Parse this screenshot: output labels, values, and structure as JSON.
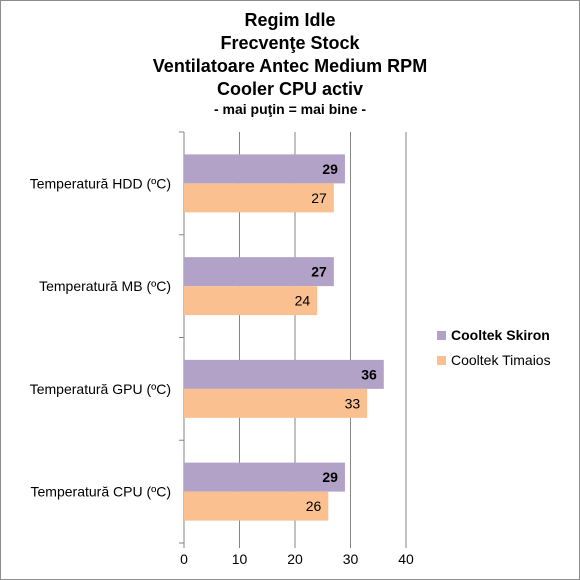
{
  "title_lines": [
    "Regim Idle",
    "Frecvenţe Stock",
    "Ventilatoare Antec Medium RPM",
    "Cooler CPU activ",
    "- mai puţin = mai bine -"
  ],
  "chart_data": {
    "type": "bar",
    "orientation": "horizontal",
    "categories": [
      "Temperatură  HDD (ºC)",
      "Temperatură  MB (ºC)",
      "Temperatură  GPU (ºC)",
      "Temperatură  CPU (ºC)"
    ],
    "series": [
      {
        "name": "Cooltek Skiron",
        "values": [
          29,
          27,
          36,
          29
        ],
        "color": "#b3a2c7"
      },
      {
        "name": "Cooltek Timaios",
        "values": [
          27,
          24,
          33,
          26
        ],
        "color": "#fac090"
      }
    ],
    "xlim": [
      0,
      40
    ],
    "xticks": [
      "0",
      "10",
      "20",
      "30",
      "40"
    ],
    "grid": true,
    "legend_position": "right",
    "data_labels": true
  }
}
